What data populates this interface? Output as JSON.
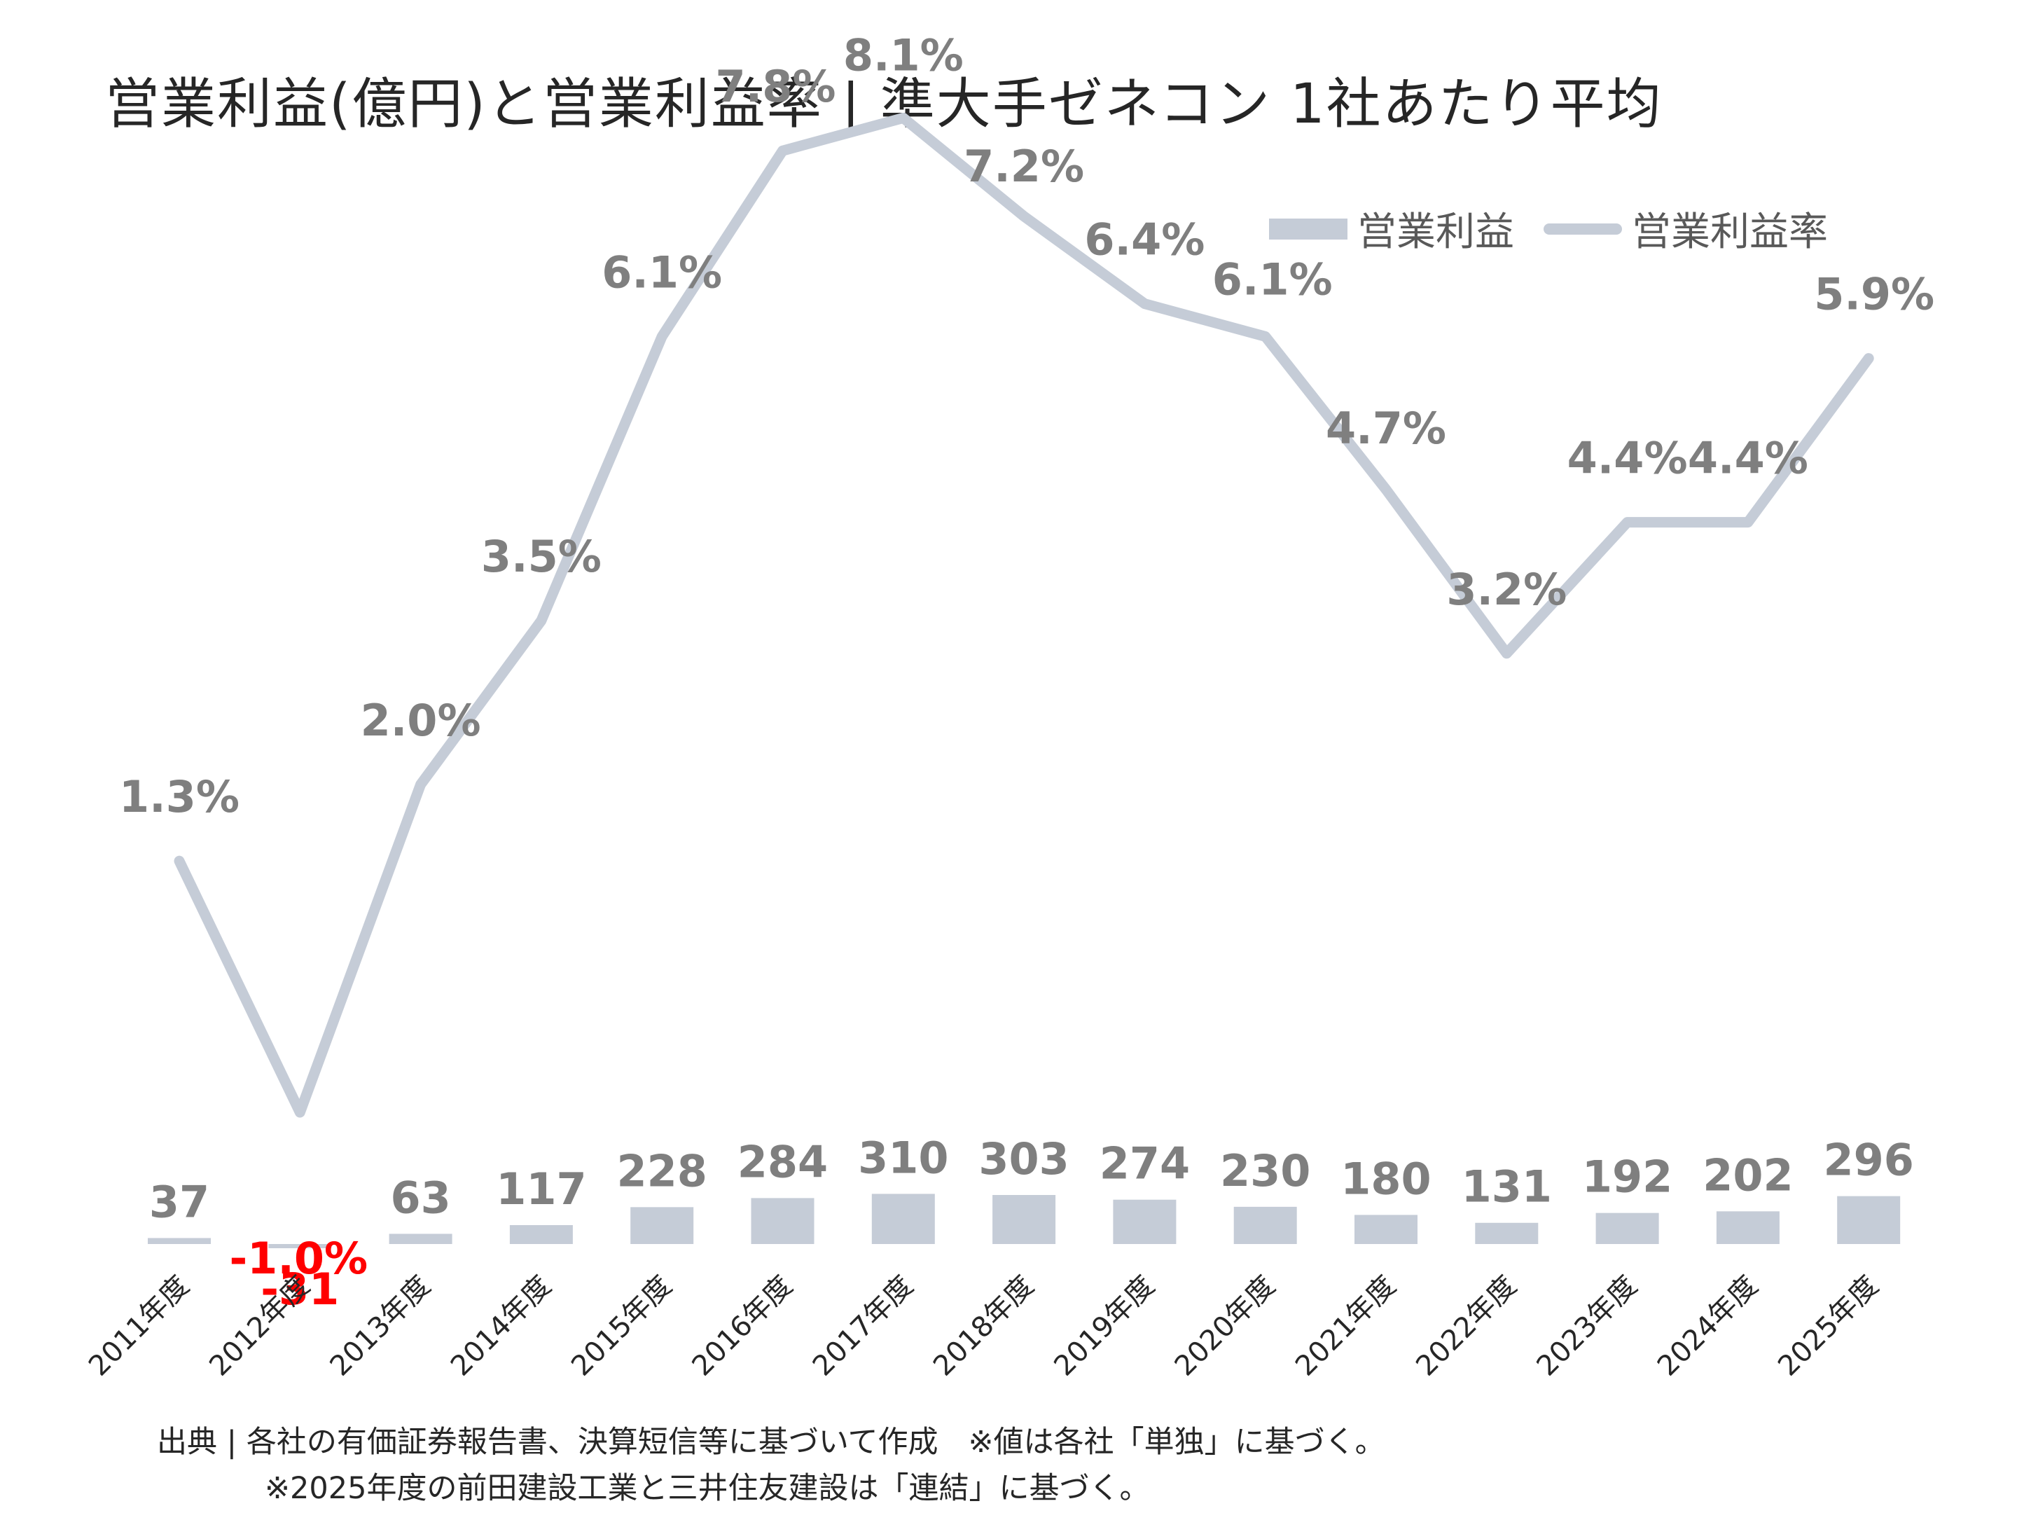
{
  "title": "営業利益(億円)と営業利益率 | 準大手ゼネコン 1社あたり平均",
  "legend": {
    "bar_label": "営業利益",
    "line_label": "営業利益率"
  },
  "source": {
    "line1": "出典 | 各社の有価証券報告書、決算短信等に基づいて作成　※値は各社「単独」に基づく。",
    "line2": "※2025年度の前田建設工業と三井住友建設は「連結」に基づく。"
  },
  "colors": {
    "series": "#c5ccd7",
    "label": "#7f7f7f",
    "negative": "#ff0000",
    "title": "#262626"
  },
  "chart_data": {
    "type": "bar+line",
    "categories": [
      "2011年度",
      "2012年度",
      "2013年度",
      "2014年度",
      "2015年度",
      "2016年度",
      "2017年度",
      "2018年度",
      "2019年度",
      "2020年度",
      "2021年度",
      "2022年度",
      "2023年度",
      "2024年度",
      "2025年度"
    ],
    "series": [
      {
        "name": "営業利益",
        "type": "bar",
        "axis": "left",
        "values": [
          37,
          -31,
          63,
          117,
          228,
          284,
          310,
          303,
          274,
          230,
          180,
          131,
          192,
          202,
          296
        ]
      },
      {
        "name": "営業利益率",
        "type": "line",
        "axis": "right",
        "values": [
          1.3,
          -1.0,
          2.0,
          3.5,
          6.1,
          7.8,
          8.1,
          7.2,
          6.4,
          6.1,
          4.7,
          3.2,
          4.4,
          4.4,
          5.9
        ],
        "labels": [
          "1.3%",
          "-1.0%",
          "2.0%",
          "3.5%",
          "6.1%",
          "7.8%",
          "8.1%",
          "7.2%",
          "6.4%",
          "6.1%",
          "4.7%",
          "3.2%",
          "4.4%",
          "4.4%",
          "5.9%"
        ]
      }
    ],
    "bar_labels": [
      "37",
      "-31",
      "63",
      "117",
      "228",
      "284",
      "310",
      "303",
      "274",
      "230",
      "180",
      "131",
      "192",
      "202",
      "296"
    ],
    "negative_highlight": "2012年度",
    "legend_position": "top-right",
    "grid": false
  }
}
